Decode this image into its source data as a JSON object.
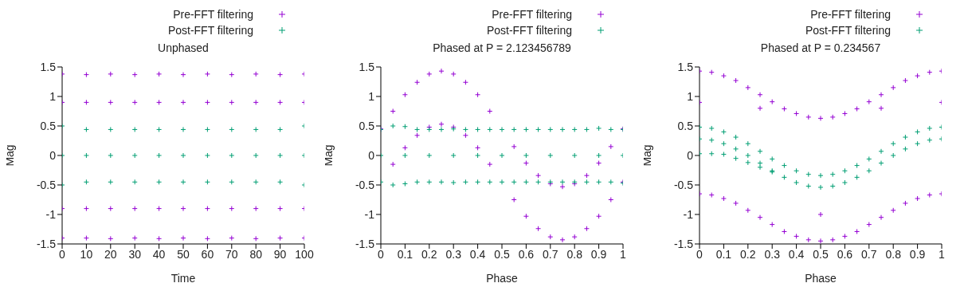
{
  "chart_data": [
    {
      "type": "scatter",
      "title": "Unphased",
      "xlabel": "Time",
      "ylabel": "Mag",
      "xlim": [
        0,
        100
      ],
      "xticks": [
        0,
        10,
        20,
        30,
        40,
        50,
        60,
        70,
        80,
        90,
        100
      ],
      "ylim": [
        -1.5,
        1.5
      ],
      "yticks": [
        -1.5,
        -1,
        -0.5,
        0,
        0.5,
        1,
        1.5
      ],
      "legend": "top right",
      "grid": false,
      "marker": "cross",
      "series": [
        {
          "name": "Pre-FFT filtering",
          "color": "#9400d3",
          "x": [
            0,
            10,
            20,
            30,
            40,
            50,
            60,
            70,
            80,
            90,
            100,
            0,
            10,
            20,
            30,
            40,
            50,
            60,
            70,
            80,
            90,
            100,
            0,
            10,
            20,
            30,
            40,
            50,
            60,
            70,
            80,
            90,
            100,
            0,
            10,
            20,
            30,
            40,
            50,
            60,
            70,
            80,
            90,
            100
          ],
          "values": [
            1.38,
            1.37,
            1.38,
            1.37,
            1.38,
            1.37,
            1.38,
            1.37,
            1.38,
            1.37,
            1.38,
            -1.4,
            -1.4,
            -1.41,
            -1.4,
            -1.41,
            -1.4,
            -1.41,
            -1.4,
            -1.41,
            -1.4,
            -1.4,
            0.9,
            0.9,
            0.9,
            0.9,
            0.9,
            0.9,
            0.9,
            0.9,
            0.9,
            0.9,
            0.9,
            -0.9,
            -0.9,
            -0.9,
            -0.9,
            -0.9,
            -0.9,
            -0.9,
            -0.9,
            -0.9,
            -0.9,
            -0.9
          ]
        },
        {
          "name": "Post-FFT filtering",
          "color": "#009e73",
          "x": [
            0,
            10,
            20,
            30,
            40,
            50,
            60,
            70,
            80,
            90,
            100,
            0,
            10,
            20,
            30,
            40,
            50,
            60,
            70,
            80,
            90,
            100,
            0,
            10,
            20,
            30,
            40,
            50,
            60,
            70,
            80,
            90,
            100
          ],
          "values": [
            0.5,
            0.44,
            0.44,
            0.44,
            0.44,
            0.44,
            0.44,
            0.44,
            0.44,
            0.44,
            0.5,
            -0.5,
            -0.45,
            -0.45,
            -0.45,
            -0.45,
            -0.45,
            -0.45,
            -0.45,
            -0.45,
            -0.45,
            -0.5,
            0,
            0,
            0,
            0,
            0,
            0,
            0,
            0,
            0,
            0,
            0
          ]
        }
      ]
    },
    {
      "type": "scatter",
      "title": "Phased at P = 2.123456789",
      "xlabel": "Phase",
      "ylabel": "Mag",
      "xlim": [
        0,
        1
      ],
      "xticks": [
        0,
        0.1,
        0.2,
        0.3,
        0.4,
        0.5,
        0.6,
        0.7,
        0.8,
        0.9,
        1
      ],
      "ylim": [
        -1.5,
        1.5
      ],
      "yticks": [
        -1.5,
        -1,
        -0.5,
        0,
        0.5,
        1,
        1.5
      ],
      "legend": "top right",
      "grid": false,
      "marker": "cross",
      "series": [
        {
          "name": "Pre-FFT filtering",
          "color": "#9400d3",
          "x": [
            0,
            0.05,
            0.1,
            0.15,
            0.2,
            0.25,
            0.3,
            0.35,
            0.4,
            0.45,
            0.55,
            0.6,
            0.65,
            0.7,
            0.75,
            0.8,
            0.85,
            0.9,
            0.95,
            1,
            0.05,
            0.1,
            0.15,
            0.2,
            0.25,
            0.3,
            0.35,
            0.4,
            0.45,
            0.55,
            0.6,
            0.65,
            0.7,
            0.75,
            0.8,
            0.85,
            0.9,
            0.95,
            1
          ],
          "values": [
            0.45,
            0.75,
            1.03,
            1.24,
            1.38,
            1.43,
            1.38,
            1.24,
            1.03,
            0.75,
            0.15,
            -0.13,
            -0.34,
            -0.48,
            -0.53,
            -0.48,
            -0.34,
            -0.13,
            0.15,
            0.45,
            -0.15,
            0.13,
            0.34,
            0.48,
            0.53,
            0.48,
            0.34,
            0.13,
            -0.15,
            -0.75,
            -1.03,
            -1.24,
            -1.38,
            -1.43,
            -1.38,
            -1.24,
            -1.03,
            -0.75,
            -0.45
          ]
        },
        {
          "name": "Post-FFT filtering",
          "color": "#009e73",
          "x": [
            0,
            0.05,
            0.1,
            0.15,
            0.2,
            0.25,
            0.3,
            0.35,
            0.4,
            0.45,
            0.5,
            0.55,
            0.6,
            0.65,
            0.7,
            0.75,
            0.8,
            0.85,
            0.9,
            0.95,
            1,
            0,
            0.05,
            0.1,
            0.15,
            0.2,
            0.25,
            0.3,
            0.35,
            0.4,
            0.45,
            0.5,
            0.55,
            0.6,
            0.65,
            0.7,
            0.75,
            0.8,
            0.85,
            0.9,
            0.95,
            1,
            0,
            0.1,
            0.2,
            0.3,
            0.4,
            0.5,
            0.6,
            0.7,
            0.8,
            0.9,
            1
          ],
          "values": [
            0.44,
            0.5,
            0.49,
            0.44,
            0.44,
            0.44,
            0.45,
            0.44,
            0.44,
            0.44,
            0.44,
            0.44,
            0.44,
            0.44,
            0.44,
            0.44,
            0.44,
            0.44,
            0.46,
            0.44,
            0.44,
            -0.45,
            -0.5,
            -0.48,
            -0.45,
            -0.45,
            -0.45,
            -0.46,
            -0.45,
            -0.45,
            -0.45,
            -0.45,
            -0.45,
            -0.45,
            -0.45,
            -0.45,
            -0.45,
            -0.45,
            -0.45,
            -0.45,
            -0.45,
            -0.47,
            0,
            0,
            0,
            0,
            0,
            0,
            0,
            0,
            0,
            0,
            0
          ]
        }
      ]
    },
    {
      "type": "scatter",
      "title": "Phased at P = 0.234567",
      "xlabel": "Phase",
      "ylabel": "Mag",
      "xlim": [
        0,
        1
      ],
      "xticks": [
        0,
        0.1,
        0.2,
        0.3,
        0.4,
        0.5,
        0.6,
        0.7,
        0.8,
        0.9,
        1
      ],
      "ylim": [
        -1.5,
        1.5
      ],
      "yticks": [
        -1.5,
        -1,
        -0.5,
        0,
        0.5,
        1,
        1.5
      ],
      "legend": "top right",
      "grid": false,
      "marker": "cross",
      "series": [
        {
          "name": "Pre-FFT filtering",
          "color": "#9400d3",
          "x": [
            0,
            0.05,
            0.1,
            0.15,
            0.2,
            0.25,
            0.3,
            0.35,
            0.4,
            0.45,
            0.5,
            0.55,
            0.6,
            0.65,
            0.7,
            0.75,
            0.8,
            0.85,
            0.9,
            0.95,
            1,
            0,
            0.05,
            0.1,
            0.15,
            0.2,
            0.25,
            0.3,
            0.35,
            0.4,
            0.45,
            0.5,
            0.55,
            0.6,
            0.65,
            0.7,
            0.75,
            0.8,
            0.85,
            0.9,
            0.95,
            1,
            0,
            0.25,
            0.5,
            0.75,
            1
          ],
          "values": [
            1.43,
            1.41,
            1.35,
            1.27,
            1.15,
            1.03,
            0.91,
            0.79,
            0.71,
            0.65,
            0.63,
            0.65,
            0.71,
            0.79,
            0.91,
            1.03,
            1.15,
            1.27,
            1.35,
            1.41,
            1.43,
            -0.65,
            -0.67,
            -0.73,
            -0.81,
            -0.93,
            -1.05,
            -1.17,
            -1.29,
            -1.37,
            -1.43,
            -1.45,
            -1.43,
            -1.37,
            -1.29,
            -1.17,
            -1.05,
            -0.93,
            -0.81,
            -0.73,
            -0.67,
            -0.65,
            0.9,
            0.8,
            -1,
            0.8,
            0.9
          ]
        },
        {
          "name": "Post-FFT filtering",
          "color": "#009e73",
          "x": [
            0,
            0.05,
            0.1,
            0.15,
            0.2,
            0.25,
            0.3,
            0.35,
            0.4,
            0.45,
            0.5,
            0.55,
            0.6,
            0.65,
            0.7,
            0.75,
            0.8,
            0.85,
            0.9,
            0.95,
            1,
            0,
            0.05,
            0.1,
            0.15,
            0.2,
            0.25,
            0.3,
            0.35,
            0.4,
            0.45,
            0.5,
            0.55,
            0.6,
            0.65,
            0.7,
            0.75,
            0.8,
            0.85,
            0.9,
            0.95,
            1,
            0,
            0.05,
            0.1,
            0.15,
            0.2,
            0.25,
            0.3
          ],
          "values": [
            0.48,
            0.46,
            0.4,
            0.31,
            0.2,
            0.07,
            -0.06,
            -0.17,
            -0.26,
            -0.32,
            -0.34,
            -0.32,
            -0.26,
            -0.17,
            -0.06,
            0.07,
            0.2,
            0.31,
            0.4,
            0.46,
            0.48,
            0.28,
            0.26,
            0.2,
            0.11,
            0,
            -0.13,
            -0.26,
            -0.37,
            -0.46,
            -0.52,
            -0.54,
            -0.52,
            -0.46,
            -0.37,
            -0.26,
            -0.13,
            0,
            0.11,
            0.2,
            0.26,
            0.28,
            0.03,
            0.03,
            0.02,
            -0.05,
            -0.12,
            -0.2,
            -0.28
          ]
        }
      ]
    }
  ]
}
